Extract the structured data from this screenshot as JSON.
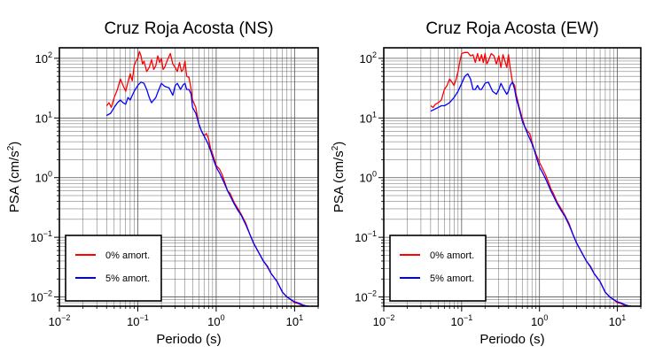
{
  "colors": {
    "damping_0": "#ff0000",
    "damping_5": "#0000ff",
    "axis": "#000000",
    "grid": "#555555"
  },
  "chart_data": [
    {
      "type": "line",
      "title": "Cruz Roja Acosta (NS)",
      "xlabel": "Periodo (s)",
      "ylabel_base": "PSA (cm/s",
      "ylabel_sup": "2",
      "ylabel_close": ")",
      "xscale": "log",
      "yscale": "log",
      "xlim": [
        0.01,
        20
      ],
      "ylim": [
        0.007,
        150
      ],
      "grid": true,
      "legend_position": "bottom-left",
      "x_ticks": [
        {
          "base": "10",
          "exp": "−2"
        },
        {
          "base": "10",
          "exp": "−1"
        },
        {
          "base": "10",
          "exp": "0"
        },
        {
          "base": "10",
          "exp": "1"
        }
      ],
      "y_ticks": [
        {
          "base": "10",
          "exp": "−2"
        },
        {
          "base": "10",
          "exp": "−1"
        },
        {
          "base": "10",
          "exp": "0"
        },
        {
          "base": "10",
          "exp": "1"
        },
        {
          "base": "10",
          "exp": "2"
        }
      ],
      "series": [
        {
          "name": "0% amort.",
          "color": "#ff0000",
          "x": [
            0.04,
            0.043,
            0.046,
            0.05,
            0.055,
            0.06,
            0.065,
            0.07,
            0.075,
            0.08,
            0.085,
            0.09,
            0.095,
            0.1,
            0.105,
            0.11,
            0.115,
            0.12,
            0.13,
            0.14,
            0.15,
            0.16,
            0.17,
            0.18,
            0.19,
            0.2,
            0.21,
            0.22,
            0.24,
            0.26,
            0.28,
            0.3,
            0.32,
            0.34,
            0.36,
            0.38,
            0.4,
            0.42,
            0.45,
            0.48,
            0.5,
            0.55,
            0.6,
            0.65,
            0.7,
            0.75,
            0.8,
            0.85,
            0.9,
            1,
            1.1,
            1.2,
            1.3,
            1.4,
            1.5,
            1.7,
            1.9,
            2.1,
            2.4,
            2.7,
            3,
            3.5,
            4,
            4.5,
            5,
            6,
            7,
            8,
            9,
            10,
            11,
            12,
            13,
            14,
            15
          ],
          "y": [
            16,
            18,
            15,
            22,
            30,
            45,
            35,
            28,
            40,
            55,
            42,
            75,
            90,
            100,
            130,
            110,
            80,
            90,
            60,
            70,
            95,
            65,
            75,
            110,
            85,
            100,
            65,
            70,
            95,
            120,
            80,
            70,
            60,
            85,
            60,
            65,
            90,
            50,
            48,
            30,
            20,
            15,
            8,
            6,
            5,
            5.5,
            4.5,
            3,
            2.5,
            1.6,
            1.4,
            1.1,
            0.8,
            0.6,
            0.55,
            0.38,
            0.3,
            0.24,
            0.17,
            0.11,
            0.08,
            0.055,
            0.04,
            0.033,
            0.025,
            0.018,
            0.012,
            0.01,
            0.009,
            0.008,
            0.0078,
            0.0074,
            0.0072,
            0.0071,
            0.007
          ]
        },
        {
          "name": "5% amort.",
          "color": "#0000ff",
          "x": [
            0.04,
            0.045,
            0.05,
            0.055,
            0.06,
            0.065,
            0.07,
            0.075,
            0.08,
            0.09,
            0.1,
            0.11,
            0.12,
            0.13,
            0.14,
            0.15,
            0.16,
            0.17,
            0.18,
            0.2,
            0.22,
            0.25,
            0.28,
            0.3,
            0.32,
            0.35,
            0.38,
            0.4,
            0.42,
            0.45,
            0.48,
            0.5,
            0.55,
            0.6,
            0.65,
            0.7,
            0.75,
            0.8,
            0.85,
            0.9,
            1,
            1.1,
            1.2,
            1.3,
            1.4,
            1.5,
            1.7,
            1.9,
            2.1,
            2.4,
            2.7,
            3,
            3.5,
            4,
            4.5,
            5,
            6,
            7,
            8,
            9,
            10,
            11,
            12,
            13,
            14,
            15
          ],
          "y": [
            11,
            12,
            15,
            18,
            20,
            18,
            17,
            22,
            20,
            28,
            35,
            40,
            38,
            30,
            22,
            18,
            20,
            22,
            27,
            38,
            34,
            32,
            24,
            35,
            38,
            30,
            36,
            38,
            30,
            30,
            25,
            15,
            12,
            8,
            6,
            5,
            4.2,
            3.5,
            2.8,
            2.2,
            1.5,
            1.2,
            0.95,
            0.75,
            0.6,
            0.5,
            0.36,
            0.28,
            0.23,
            0.16,
            0.11,
            0.08,
            0.055,
            0.04,
            0.032,
            0.025,
            0.018,
            0.012,
            0.01,
            0.009,
            0.0083,
            0.008,
            0.0076,
            0.0073,
            0.0071,
            0.007
          ]
        }
      ]
    },
    {
      "type": "line",
      "title": "Cruz Roja Acosta (EW)",
      "xlabel": "Periodo (s)",
      "ylabel_base": "PSA (cm/s",
      "ylabel_sup": "2",
      "ylabel_close": ")",
      "xscale": "log",
      "yscale": "log",
      "xlim": [
        0.01,
        20
      ],
      "ylim": [
        0.007,
        150
      ],
      "grid": true,
      "legend_position": "bottom-left",
      "x_ticks": [
        {
          "base": "10",
          "exp": "−2"
        },
        {
          "base": "10",
          "exp": "−1"
        },
        {
          "base": "10",
          "exp": "0"
        },
        {
          "base": "10",
          "exp": "1"
        }
      ],
      "y_ticks": [
        {
          "base": "10",
          "exp": "−2"
        },
        {
          "base": "10",
          "exp": "−1"
        },
        {
          "base": "10",
          "exp": "0"
        },
        {
          "base": "10",
          "exp": "1"
        },
        {
          "base": "10",
          "exp": "2"
        }
      ],
      "series": [
        {
          "name": "0% amort.",
          "color": "#ff0000",
          "x": [
            0.04,
            0.043,
            0.046,
            0.05,
            0.055,
            0.06,
            0.065,
            0.07,
            0.075,
            0.08,
            0.085,
            0.09,
            0.095,
            0.1,
            0.11,
            0.12,
            0.13,
            0.14,
            0.15,
            0.16,
            0.17,
            0.18,
            0.19,
            0.2,
            0.21,
            0.22,
            0.24,
            0.26,
            0.28,
            0.3,
            0.32,
            0.34,
            0.36,
            0.38,
            0.4,
            0.42,
            0.45,
            0.48,
            0.5,
            0.55,
            0.6,
            0.65,
            0.7,
            0.75,
            0.8,
            0.85,
            0.9,
            1,
            1.1,
            1.2,
            1.3,
            1.4,
            1.5,
            1.7,
            1.9,
            2.1,
            2.4,
            2.7,
            3,
            3.5,
            4,
            4.5,
            5,
            6,
            7,
            8,
            9,
            10,
            11,
            12,
            13,
            14,
            15
          ],
          "y": [
            16,
            15,
            17,
            18,
            20,
            30,
            35,
            45,
            40,
            35,
            45,
            60,
            90,
            120,
            125,
            125,
            110,
            115,
            85,
            120,
            90,
            115,
            85,
            120,
            80,
            90,
            120,
            110,
            80,
            110,
            70,
            115,
            90,
            70,
            115,
            70,
            40,
            35,
            25,
            15,
            10,
            7,
            6,
            5.5,
            4,
            3,
            2.5,
            1.8,
            1.4,
            1.1,
            0.85,
            0.65,
            0.55,
            0.38,
            0.3,
            0.24,
            0.17,
            0.11,
            0.08,
            0.055,
            0.04,
            0.033,
            0.025,
            0.018,
            0.012,
            0.01,
            0.009,
            0.008,
            0.0078,
            0.0074,
            0.0072,
            0.0071,
            0.007
          ]
        },
        {
          "name": "5% amort.",
          "color": "#0000ff",
          "x": [
            0.04,
            0.045,
            0.05,
            0.055,
            0.06,
            0.065,
            0.07,
            0.075,
            0.08,
            0.09,
            0.1,
            0.11,
            0.12,
            0.13,
            0.14,
            0.15,
            0.16,
            0.17,
            0.18,
            0.2,
            0.22,
            0.25,
            0.28,
            0.3,
            0.32,
            0.35,
            0.38,
            0.4,
            0.42,
            0.45,
            0.48,
            0.5,
            0.55,
            0.6,
            0.65,
            0.7,
            0.75,
            0.8,
            0.85,
            0.9,
            1,
            1.1,
            1.2,
            1.3,
            1.4,
            1.5,
            1.7,
            1.9,
            2.1,
            2.4,
            2.7,
            3,
            3.5,
            4,
            4.5,
            5,
            6,
            7,
            8,
            9,
            10,
            11,
            12,
            13,
            14,
            15
          ],
          "y": [
            13,
            14,
            15,
            16,
            16,
            17,
            18,
            20,
            22,
            28,
            38,
            50,
            55,
            45,
            30,
            30,
            35,
            30,
            30,
            38,
            40,
            28,
            25,
            30,
            38,
            30,
            25,
            28,
            35,
            40,
            30,
            22,
            14,
            9,
            7,
            5.5,
            4.5,
            3.7,
            3,
            2.3,
            1.5,
            1.2,
            0.95,
            0.75,
            0.6,
            0.5,
            0.36,
            0.28,
            0.23,
            0.16,
            0.11,
            0.08,
            0.055,
            0.04,
            0.032,
            0.025,
            0.018,
            0.012,
            0.01,
            0.009,
            0.0083,
            0.008,
            0.0076,
            0.0073,
            0.0071,
            0.007
          ]
        }
      ]
    }
  ]
}
